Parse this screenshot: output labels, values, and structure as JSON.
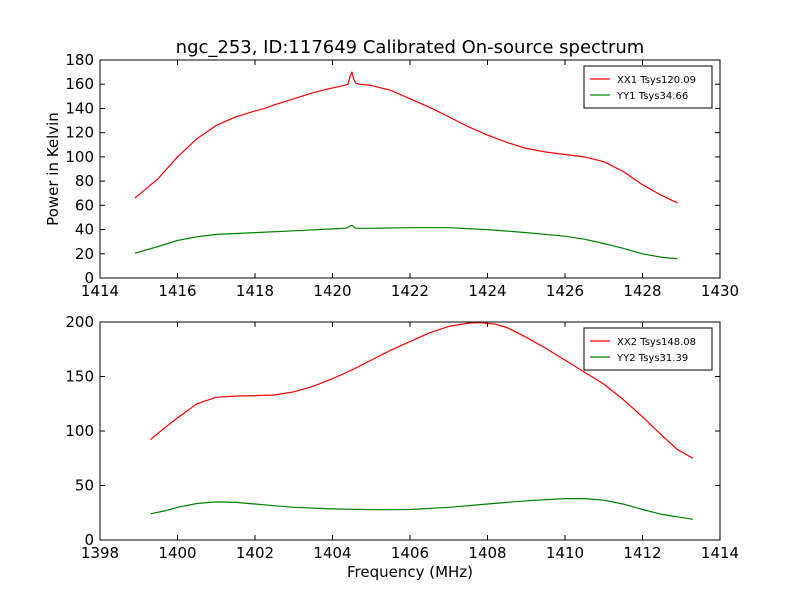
{
  "title": "ngc_253, ID:117649 Calibrated On-source spectrum",
  "chart_data": [
    {
      "type": "line",
      "ylabel": "Power in Kelvin",
      "xlabel": "",
      "xlim": [
        1414,
        1430
      ],
      "ylim": [
        0,
        180
      ],
      "xticks": [
        1414,
        1416,
        1418,
        1420,
        1422,
        1424,
        1426,
        1428,
        1430
      ],
      "yticks": [
        0,
        20,
        40,
        60,
        80,
        100,
        120,
        140,
        160,
        180
      ],
      "grid": false,
      "legend_position": "top-right",
      "series": [
        {
          "name": "XX1 Tsys120.09",
          "color": "#ff0000",
          "x": [
            1414.9,
            1415.5,
            1416.0,
            1416.5,
            1417.0,
            1417.5,
            1418.0,
            1418.25,
            1418.5,
            1419.0,
            1419.5,
            1420.0,
            1420.3,
            1420.4,
            1420.45,
            1420.5,
            1420.55,
            1420.6,
            1420.7,
            1421.0,
            1421.5,
            1422.0,
            1422.5,
            1423.0,
            1423.5,
            1424.0,
            1424.5,
            1425.0,
            1425.5,
            1426.0,
            1426.5,
            1427.0,
            1427.5,
            1428.0,
            1428.5,
            1428.9
          ],
          "y": [
            66,
            82,
            100,
            115,
            126,
            133,
            138,
            140,
            143,
            148,
            153,
            157,
            159,
            160,
            166,
            170,
            164,
            161,
            160,
            159,
            155,
            148,
            141,
            133,
            125,
            118,
            112,
            107,
            104,
            102,
            100,
            96,
            88,
            77,
            68,
            62
          ]
        },
        {
          "name": "YY1 Tsys34.66",
          "color": "#008000",
          "x": [
            1414.9,
            1415.5,
            1416.0,
            1416.5,
            1417.0,
            1418.0,
            1419.0,
            1420.0,
            1420.3,
            1420.4,
            1420.45,
            1420.5,
            1420.6,
            1421.0,
            1422.0,
            1423.0,
            1424.0,
            1425.0,
            1426.0,
            1426.5,
            1427.0,
            1427.5,
            1428.0,
            1428.5,
            1428.9
          ],
          "y": [
            20.5,
            26,
            31,
            34,
            36,
            37.5,
            39,
            40.5,
            41,
            41.5,
            43,
            43.5,
            41,
            41,
            41.5,
            41.5,
            40,
            37.5,
            34.5,
            32,
            28.5,
            24.5,
            20,
            17,
            16
          ]
        }
      ]
    },
    {
      "type": "line",
      "ylabel": "",
      "xlabel": "Frequency (MHz)",
      "xlim": [
        1398,
        1414
      ],
      "ylim": [
        0,
        200
      ],
      "xticks": [
        1398,
        1400,
        1402,
        1404,
        1406,
        1408,
        1410,
        1412,
        1414
      ],
      "yticks": [
        0,
        50,
        100,
        150,
        200
      ],
      "grid": false,
      "legend_position": "top-right",
      "series": [
        {
          "name": "XX2 Tsys148.08",
          "color": "#ff0000",
          "x": [
            1399.3,
            1399.6,
            1400.0,
            1400.5,
            1401.0,
            1401.5,
            1402.0,
            1402.5,
            1403.0,
            1403.5,
            1404.0,
            1404.5,
            1405.0,
            1405.5,
            1406.0,
            1406.5,
            1407.0,
            1407.5,
            1407.8,
            1408.2,
            1408.5,
            1409.0,
            1409.5,
            1410.0,
            1410.5,
            1411.0,
            1411.5,
            1412.0,
            1412.5,
            1412.9,
            1413.3
          ],
          "y": [
            92,
            101,
            112,
            125,
            131,
            132,
            132.5,
            133,
            136,
            141,
            148,
            156,
            165,
            174,
            182,
            190,
            196,
            199,
            199.5,
            198,
            195,
            186,
            176,
            165,
            154,
            143,
            129,
            113,
            96,
            83,
            75
          ]
        },
        {
          "name": "YY2 Tsys31.39",
          "color": "#008000",
          "x": [
            1399.3,
            1399.7,
            1400.0,
            1400.5,
            1401.0,
            1401.5,
            1402.0,
            1402.5,
            1403.0,
            1404.0,
            1405.0,
            1406.0,
            1407.0,
            1408.0,
            1409.0,
            1410.0,
            1410.5,
            1411.0,
            1411.5,
            1412.0,
            1412.5,
            1413.3
          ],
          "y": [
            24,
            27,
            30,
            33.5,
            35,
            34.5,
            33,
            31.5,
            30,
            28.5,
            27.8,
            28,
            30,
            33,
            36,
            38,
            38,
            36.5,
            33,
            28,
            23.5,
            19
          ]
        }
      ]
    }
  ]
}
